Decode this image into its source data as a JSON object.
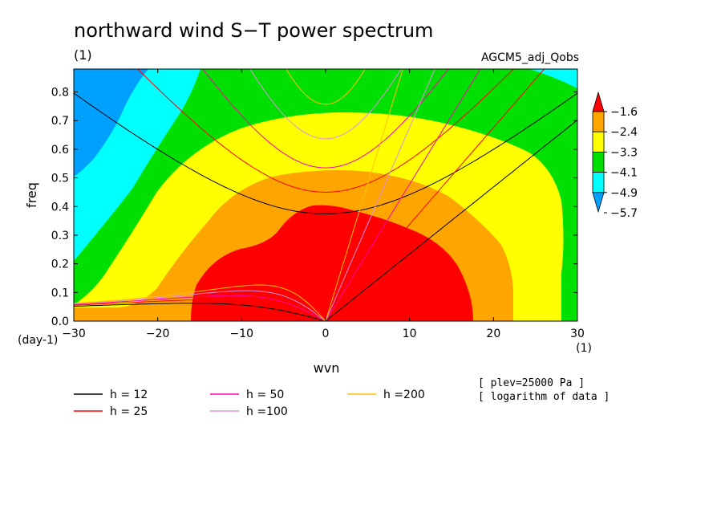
{
  "chart_data": {
    "type": "heatmap",
    "title": "northward wind S−T power spectrum",
    "subtitle_left": "(1)",
    "subtitle_right": "AGCM5_adj_Qobs",
    "xlabel": "wvn",
    "ylabel": "freq",
    "x_unit": "(1)",
    "y_unit": "(day-1)",
    "xlim": [
      -30,
      30
    ],
    "ylim": [
      0,
      0.88
    ],
    "x_ticks": [
      "−30",
      "−20",
      "−10",
      "0",
      "10",
      "20",
      "30"
    ],
    "x_tick_values": [
      -30,
      -20,
      -10,
      0,
      10,
      20,
      30
    ],
    "y_ticks": [
      "0.0",
      "0.1",
      "0.2",
      "0.3",
      "0.4",
      "0.5",
      "0.6",
      "0.7",
      "0.8"
    ],
    "y_tick_values": [
      0,
      0.1,
      0.2,
      0.3,
      0.4,
      0.5,
      0.6,
      0.7,
      0.8
    ],
    "colorbar": {
      "levels": [
        "−1.6",
        "−2.4",
        "−3.3",
        "−4.1",
        "−4.9",
        "−5.7"
      ],
      "level_values": [
        -1.6,
        -2.4,
        -3.3,
        -4.1,
        -4.9,
        -5.7
      ],
      "colors": [
        "#ff0000",
        "#ffa500",
        "#ffff00",
        "#00e000",
        "#00ffff",
        "#00a0ff"
      ]
    },
    "filled_contours": [
      {
        "level": -5.7,
        "color": "#00a0ff"
      },
      {
        "level": -4.9,
        "color": "#00ffff"
      },
      {
        "level": -4.1,
        "color": "#00e000"
      },
      {
        "level": -3.3,
        "color": "#ffff00"
      },
      {
        "level": -2.4,
        "color": "#ffa500"
      },
      {
        "level": -1.6,
        "color": "#ff0000"
      }
    ],
    "dispersion_curves": [
      {
        "name": "h = 12",
        "h": 12,
        "color": "#000000"
      },
      {
        "name": "h = 25",
        "h": 25,
        "color": "#ff0000"
      },
      {
        "name": "h = 50",
        "h": 50,
        "color": "#ff00aa"
      },
      {
        "name": "h =100",
        "h": 100,
        "color": "#e090e0"
      },
      {
        "name": "h =200",
        "h": 200,
        "color": "#ffc000"
      }
    ],
    "notes": [
      "[ plev=25000 Pa ]",
      "[ logarithm of data ]"
    ]
  }
}
